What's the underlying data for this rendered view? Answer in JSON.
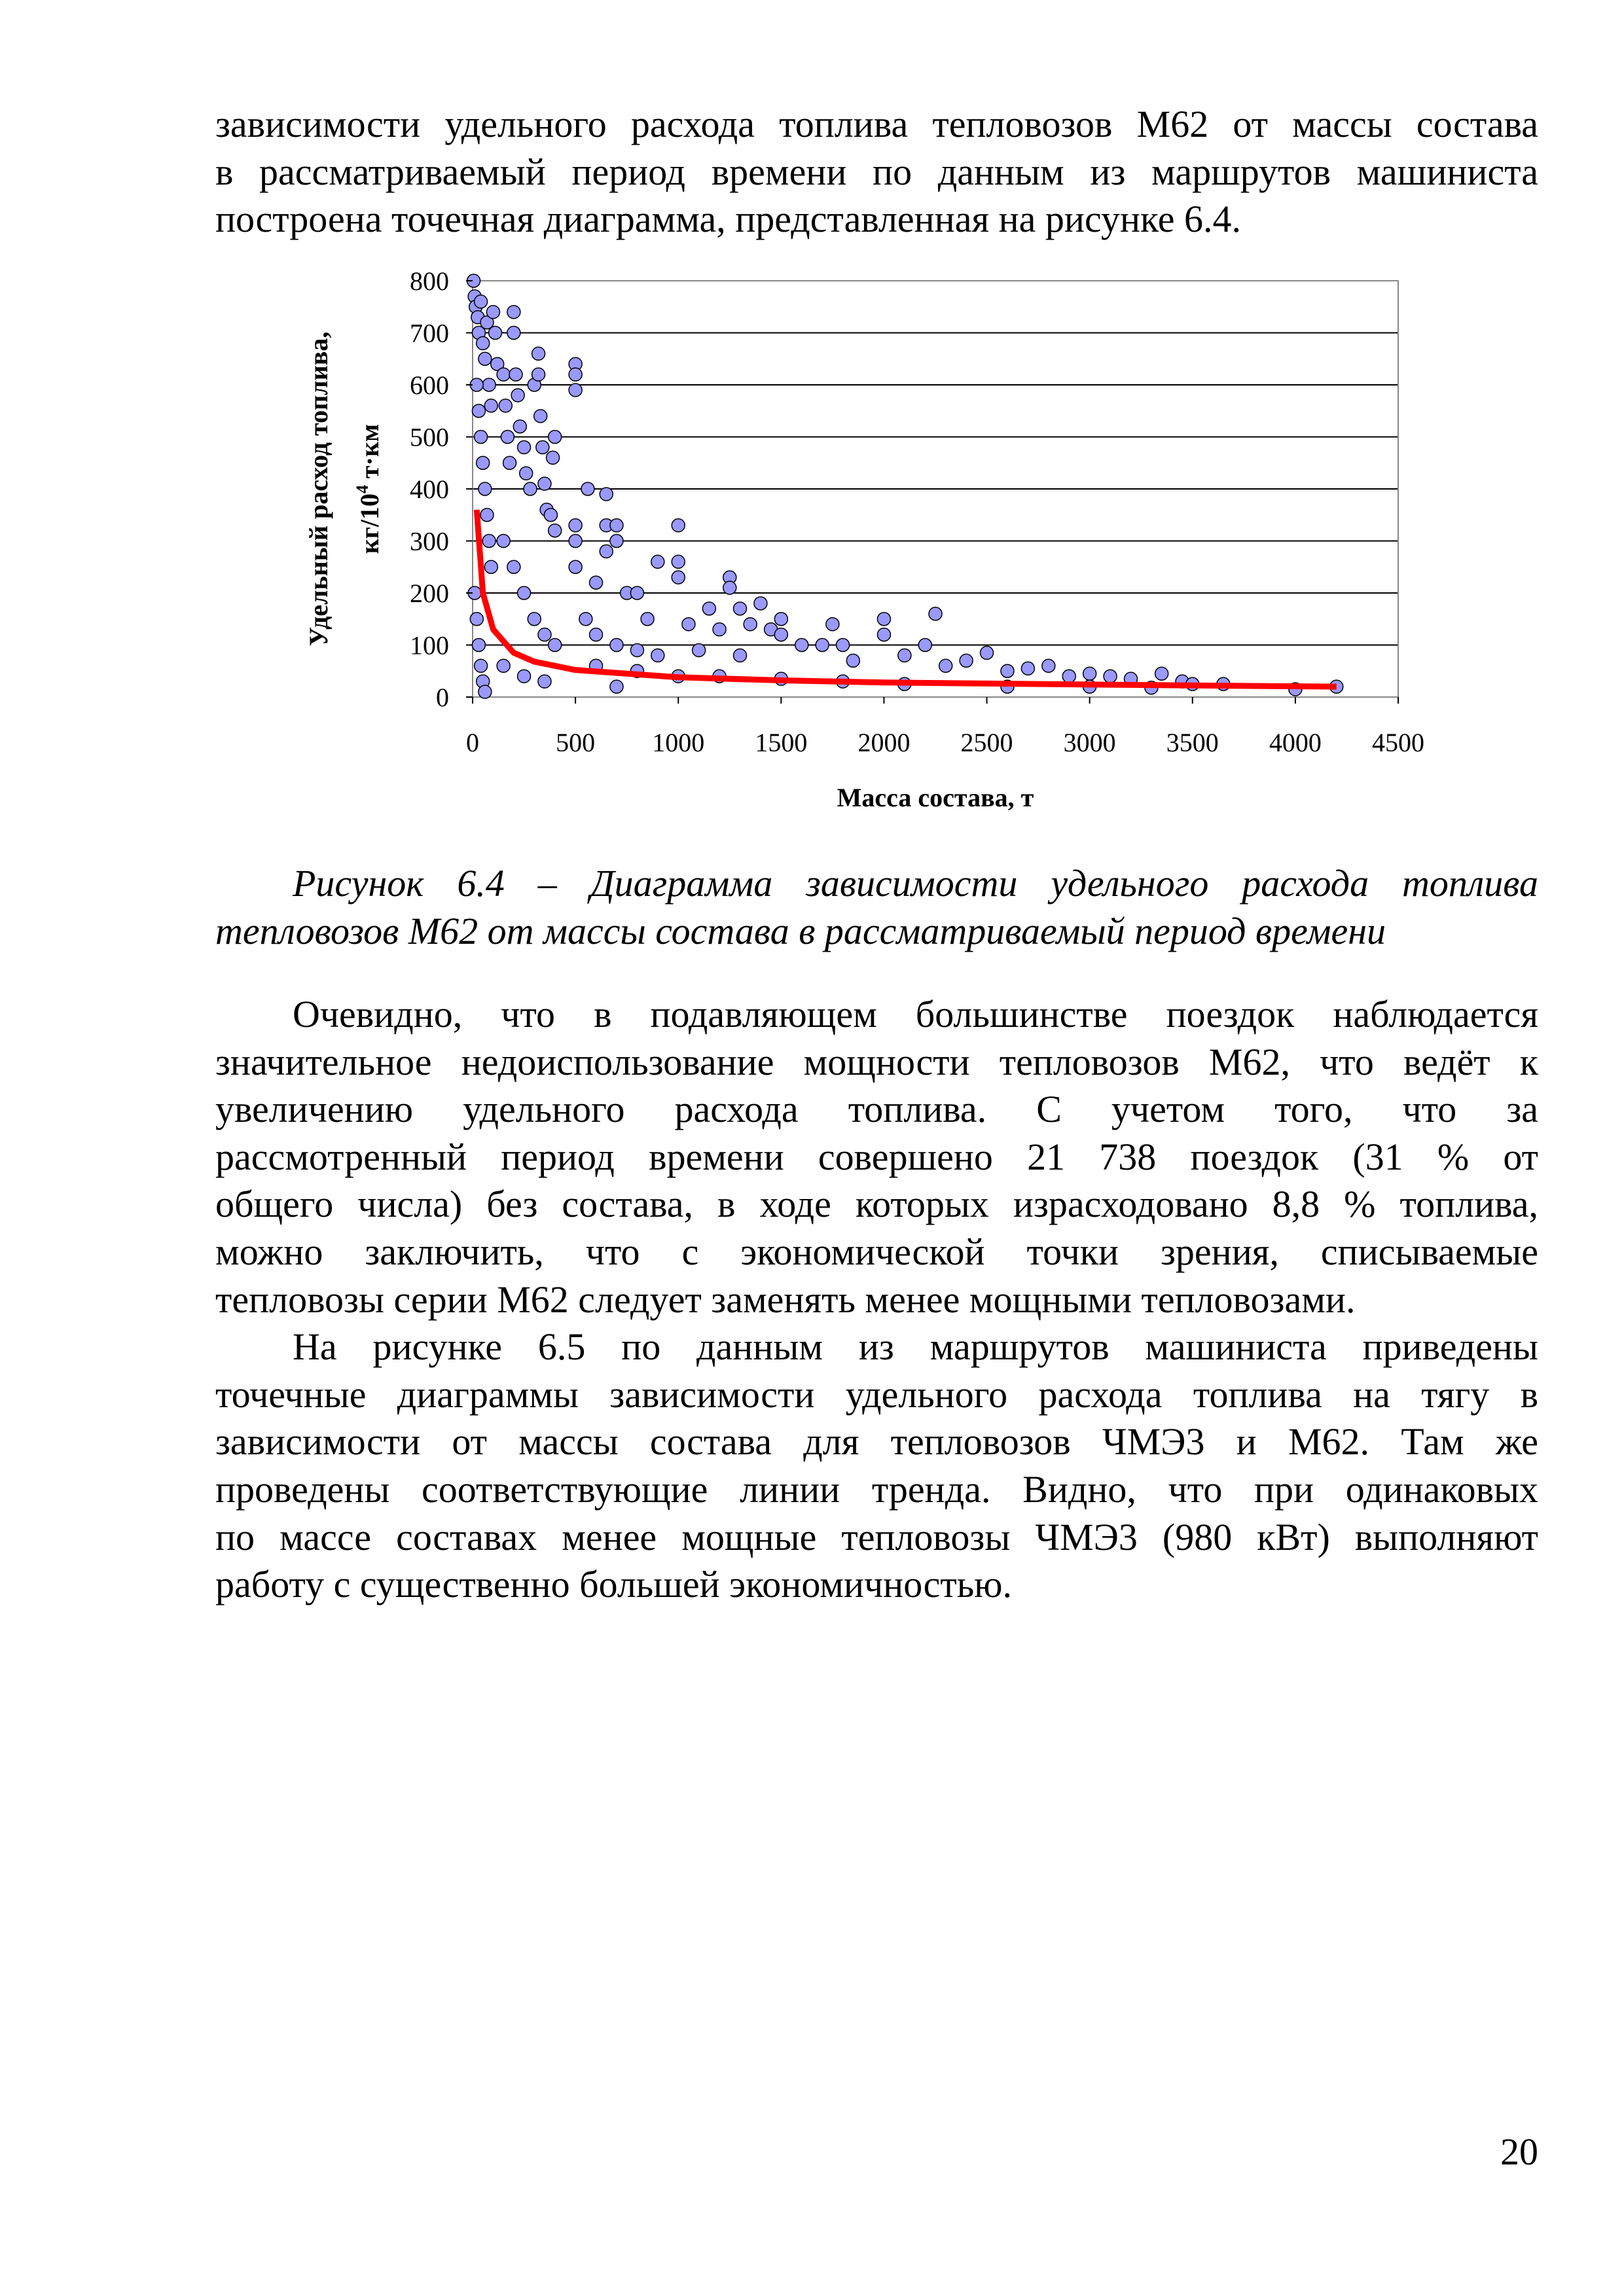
{
  "intro_lines": [
    "зависимости удельного расхода топлива тепловозов М62 от массы состава",
    "в рассматриваемый период времени по данным из маршрутов машиниста",
    "построена точечная диаграмма, представленная на рисунке 6.4."
  ],
  "caption_lines": [
    "Рисунок 6.4 – Диаграмма зависимости удельного расхода топлива",
    "тепловозов М62 от массы состава в рассматриваемый период времени"
  ],
  "paragraph1_lines": [
    "Очевидно, что в подавляющем большинстве поездок наблюдается",
    "значительное недоиспользование мощности тепловозов М62, что ведёт к",
    "увеличению удельного расхода топлива. С учетом того, что за",
    "рассмотренный период времени совершено 21 738 поездок (31 % от",
    "общего числа) без состава, в ходе которых израсходовано 8,8 % топлива,",
    "можно заключить, что с экономической точки зрения, списываемые",
    "тепловозы серии М62 следует заменять менее мощными тепловозами."
  ],
  "paragraph2_lines": [
    "На рисунке 6.5 по данным из маршрутов машиниста приведены",
    "точечные диаграммы зависимости удельного расхода топлива на тягу в",
    "зависимости от массы состава для тепловозов ЧМЭ3 и М62. Там же",
    "проведены соответствующие линии тренда. Видно, что при одинаковых",
    "по массе составах менее мощные тепловозы ЧМЭ3 (980 кВт) выполняют",
    "работу с существенно большей экономичностью."
  ],
  "page_number": "20",
  "chart_data": {
    "type": "scatter",
    "title": "",
    "xlabel": "Масса состава, т",
    "ylabel_line1": "Удельный расход топлива,",
    "ylabel_line2_prefix": "кг/10",
    "ylabel_line2_sup": "4",
    "ylabel_line2_suffix": " т·км",
    "xlim": [
      0,
      4500
    ],
    "ylim": [
      0,
      800
    ],
    "xticks": [
      "0",
      "500",
      "1000",
      "1500",
      "2000",
      "2500",
      "3000",
      "3500",
      "4000",
      "4500"
    ],
    "yticks": [
      "0",
      "100",
      "200",
      "300",
      "400",
      "500",
      "600",
      "700",
      "800"
    ],
    "grid": "horizontal",
    "legend": "none",
    "marker_color": "#9999ff",
    "trend_color": "#ff0000",
    "points": [
      [
        5,
        800
      ],
      [
        10,
        770
      ],
      [
        15,
        750
      ],
      [
        25,
        730
      ],
      [
        30,
        700
      ],
      [
        40,
        760
      ],
      [
        50,
        680
      ],
      [
        60,
        650
      ],
      [
        70,
        720
      ],
      [
        80,
        600
      ],
      [
        90,
        560
      ],
      [
        100,
        740
      ],
      [
        110,
        700
      ],
      [
        120,
        640
      ],
      [
        20,
        600
      ],
      [
        30,
        550
      ],
      [
        40,
        500
      ],
      [
        50,
        450
      ],
      [
        60,
        400
      ],
      [
        70,
        350
      ],
      [
        80,
        300
      ],
      [
        90,
        250
      ],
      [
        10,
        200
      ],
      [
        20,
        150
      ],
      [
        30,
        100
      ],
      [
        40,
        60
      ],
      [
        50,
        30
      ],
      [
        60,
        10
      ],
      [
        150,
        620
      ],
      [
        160,
        560
      ],
      [
        170,
        500
      ],
      [
        180,
        450
      ],
      [
        200,
        740
      ],
      [
        200,
        700
      ],
      [
        210,
        620
      ],
      [
        220,
        580
      ],
      [
        230,
        520
      ],
      [
        250,
        480
      ],
      [
        260,
        430
      ],
      [
        280,
        400
      ],
      [
        300,
        600
      ],
      [
        320,
        660
      ],
      [
        320,
        620
      ],
      [
        330,
        540
      ],
      [
        340,
        480
      ],
      [
        350,
        410
      ],
      [
        360,
        360
      ],
      [
        380,
        350
      ],
      [
        400,
        320
      ],
      [
        400,
        500
      ],
      [
        390,
        460
      ],
      [
        150,
        300
      ],
      [
        200,
        250
      ],
      [
        250,
        200
      ],
      [
        300,
        150
      ],
      [
        350,
        120
      ],
      [
        400,
        100
      ],
      [
        150,
        60
      ],
      [
        250,
        40
      ],
      [
        350,
        30
      ],
      [
        500,
        640
      ],
      [
        500,
        620
      ],
      [
        500,
        590
      ],
      [
        500,
        330
      ],
      [
        500,
        300
      ],
      [
        500,
        250
      ],
      [
        560,
        400
      ],
      [
        600,
        220
      ],
      [
        650,
        390
      ],
      [
        650,
        330
      ],
      [
        650,
        280
      ],
      [
        700,
        330
      ],
      [
        700,
        300
      ],
      [
        750,
        200
      ],
      [
        800,
        200
      ],
      [
        850,
        150
      ],
      [
        900,
        260
      ],
      [
        1000,
        330
      ],
      [
        1000,
        260
      ],
      [
        1000,
        230
      ],
      [
        550,
        150
      ],
      [
        600,
        120
      ],
      [
        700,
        100
      ],
      [
        800,
        90
      ],
      [
        900,
        80
      ],
      [
        600,
        60
      ],
      [
        800,
        50
      ],
      [
        1000,
        40
      ],
      [
        700,
        20
      ],
      [
        1050,
        140
      ],
      [
        1150,
        170
      ],
      [
        1200,
        130
      ],
      [
        1250,
        230
      ],
      [
        1250,
        210
      ],
      [
        1300,
        170
      ],
      [
        1350,
        140
      ],
      [
        1400,
        180
      ],
      [
        1450,
        130
      ],
      [
        1500,
        150
      ],
      [
        1500,
        120
      ],
      [
        1100,
        90
      ],
      [
        1300,
        80
      ],
      [
        1600,
        100
      ],
      [
        1700,
        100
      ],
      [
        1750,
        140
      ],
      [
        1800,
        100
      ],
      [
        1850,
        70
      ],
      [
        2000,
        150
      ],
      [
        2000,
        120
      ],
      [
        2100,
        80
      ],
      [
        2200,
        100
      ],
      [
        2250,
        160
      ],
      [
        2300,
        60
      ],
      [
        2400,
        70
      ],
      [
        2500,
        85
      ],
      [
        1200,
        40
      ],
      [
        1500,
        35
      ],
      [
        1800,
        30
      ],
      [
        2100,
        25
      ],
      [
        2600,
        50
      ],
      [
        2700,
        55
      ],
      [
        2800,
        60
      ],
      [
        2900,
        40
      ],
      [
        3000,
        45
      ],
      [
        3100,
        40
      ],
      [
        3200,
        35
      ],
      [
        3350,
        45
      ],
      [
        3450,
        30
      ],
      [
        3500,
        25
      ],
      [
        3650,
        25
      ],
      [
        4000,
        15
      ],
      [
        4200,
        20
      ],
      [
        2600,
        20
      ],
      [
        3000,
        20
      ],
      [
        3300,
        18
      ]
    ],
    "trend": [
      [
        20,
        360
      ],
      [
        50,
        200
      ],
      [
        100,
        130
      ],
      [
        200,
        85
      ],
      [
        300,
        68
      ],
      [
        500,
        52
      ],
      [
        1000,
        38
      ],
      [
        1500,
        32
      ],
      [
        2000,
        28
      ],
      [
        3000,
        24
      ],
      [
        4200,
        20
      ]
    ]
  }
}
